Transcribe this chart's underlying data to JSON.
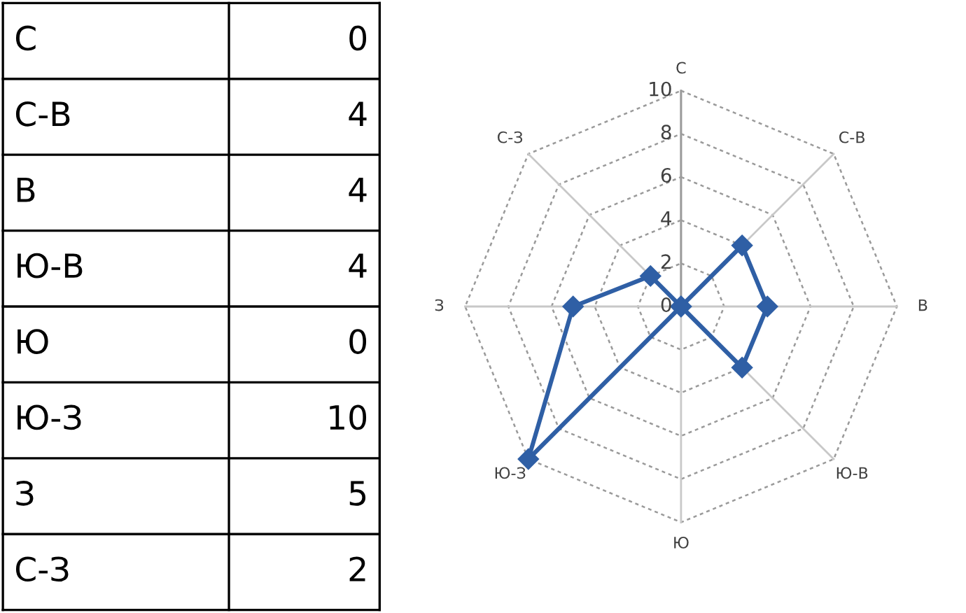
{
  "chart_data": [
    {
      "type": "other",
      "categories": [
        "С",
        "С-В",
        "В",
        "Ю-В",
        "Ю",
        "Ю-З",
        "З",
        "С-З"
      ],
      "values": [
        0,
        4,
        4,
        4,
        0,
        10,
        5,
        2
      ],
      "data_labels": true
    },
    {
      "type": "radar",
      "categories": [
        "С",
        "С-В",
        "В",
        "Ю-В",
        "Ю",
        "Ю-З",
        "З",
        "С-З"
      ],
      "series": [
        {
          "color": "#2f5fa5",
          "values": [
            0,
            4,
            4,
            4,
            0,
            10,
            5,
            2
          ]
        }
      ],
      "ylim": [
        0,
        10
      ],
      "yticks": [
        0,
        2,
        4,
        6,
        8,
        10
      ],
      "grid": true,
      "marker": "diamond",
      "line_style": "solid"
    }
  ]
}
